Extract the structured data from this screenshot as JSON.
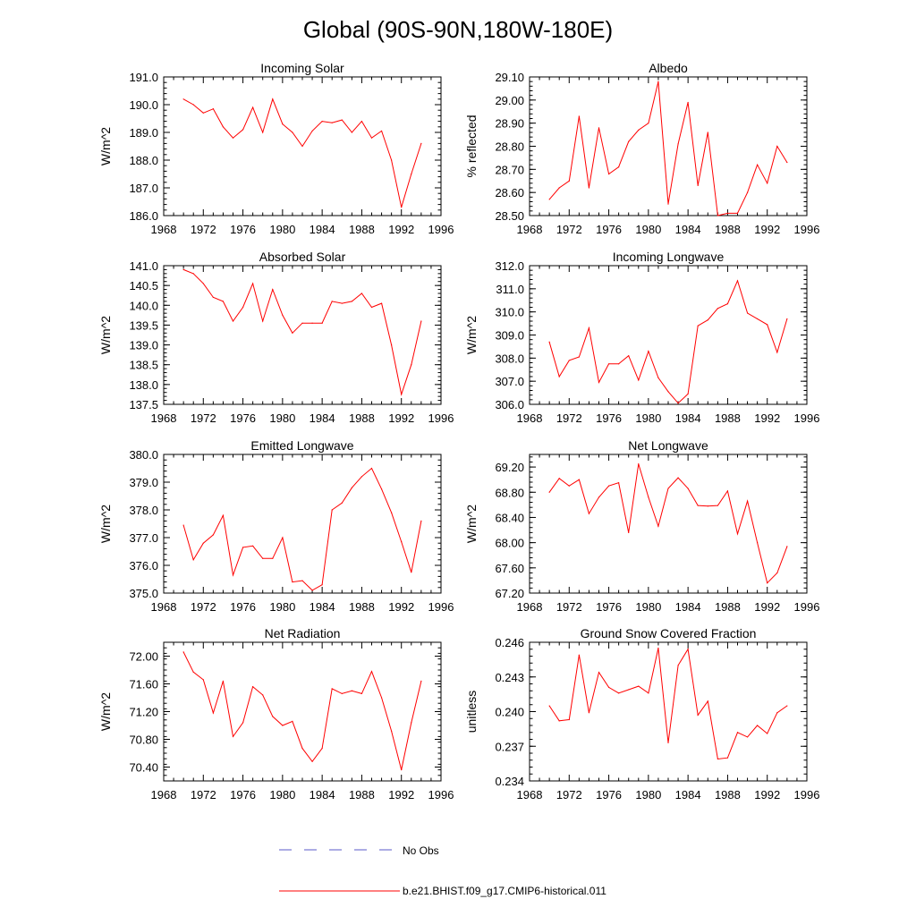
{
  "page_title": "Global (90S-90N,180W-180E)",
  "legend": [
    {
      "label": "No Obs",
      "color": "#5a5ac8",
      "dash": "dash"
    },
    {
      "label": "b.e21.BHIST.f09_g17.CMIP6-historical.011",
      "color": "#ff0000",
      "dash": "solid"
    }
  ],
  "colors": {
    "model_line": "#ff0000",
    "obs_line": "#5a5ac8",
    "axis": "#000000"
  },
  "chart_data": [
    {
      "type": "line",
      "title": "Incoming Solar",
      "ylabel": "W/m^2",
      "xlim": [
        1968,
        1996
      ],
      "xticks": [
        1968,
        1972,
        1976,
        1980,
        1984,
        1988,
        1992,
        1996
      ],
      "xtick_labels": [
        "1968",
        "1972",
        "1976",
        "1980",
        "1984",
        "1988",
        "1992",
        "1996"
      ],
      "ylim": [
        186.0,
        191.0
      ],
      "yticks": [
        186.0,
        187.0,
        188.0,
        189.0,
        190.0,
        191.0
      ],
      "ytick_labels": [
        "186.0",
        "187.0",
        "188.0",
        "189.0",
        "190.0",
        "191.0"
      ],
      "series": [
        {
          "name": "b.e21.BHIST.f09_g17.CMIP6-historical.011",
          "x": [
            1970,
            1971,
            1972,
            1973,
            1974,
            1975,
            1976,
            1977,
            1978,
            1979,
            1980,
            1981,
            1982,
            1983,
            1984,
            1985,
            1986,
            1987,
            1988,
            1989,
            1990,
            1991,
            1992,
            1993,
            1994
          ],
          "y": [
            190.2,
            190.0,
            189.7,
            189.85,
            189.2,
            188.8,
            189.1,
            189.9,
            189.0,
            190.2,
            189.3,
            189.0,
            188.5,
            189.05,
            189.4,
            189.35,
            189.45,
            189.0,
            189.4,
            188.8,
            189.05,
            188.0,
            186.3,
            187.5,
            188.6
          ]
        }
      ]
    },
    {
      "type": "line",
      "title": "Albedo",
      "ylabel": "% reflected",
      "xlim": [
        1968,
        1996
      ],
      "xticks": [
        1968,
        1972,
        1976,
        1980,
        1984,
        1988,
        1992,
        1996
      ],
      "xtick_labels": [
        "1968",
        "1972",
        "1976",
        "1980",
        "1984",
        "1988",
        "1992",
        "1996"
      ],
      "ylim": [
        28.5,
        29.1
      ],
      "yticks": [
        28.5,
        28.6,
        28.7,
        28.8,
        28.9,
        29.0,
        29.1
      ],
      "ytick_labels": [
        "28.50",
        "28.60",
        "28.70",
        "28.80",
        "28.90",
        "29.00",
        "29.10"
      ],
      "series": [
        {
          "name": "b.e21.BHIST.f09_g17.CMIP6-historical.011",
          "x": [
            1970,
            1971,
            1972,
            1973,
            1974,
            1975,
            1976,
            1977,
            1978,
            1979,
            1980,
            1981,
            1982,
            1983,
            1984,
            1985,
            1986,
            1987,
            1988,
            1989,
            1990,
            1991,
            1992,
            1993,
            1994
          ],
          "y": [
            28.57,
            28.62,
            28.65,
            28.93,
            28.62,
            28.88,
            28.68,
            28.71,
            28.82,
            28.87,
            28.9,
            29.08,
            28.55,
            28.81,
            28.99,
            28.63,
            28.86,
            28.5,
            28.51,
            28.51,
            28.6,
            28.72,
            28.64,
            28.8,
            28.73
          ]
        }
      ]
    },
    {
      "type": "line",
      "title": "Absorbed Solar",
      "ylabel": "W/m^2",
      "xlim": [
        1968,
        1996
      ],
      "xticks": [
        1968,
        1972,
        1976,
        1980,
        1984,
        1988,
        1992,
        1996
      ],
      "xtick_labels": [
        "1968",
        "1972",
        "1976",
        "1980",
        "1984",
        "1988",
        "1992",
        "1996"
      ],
      "ylim": [
        137.5,
        141.0
      ],
      "yticks": [
        137.5,
        138.0,
        138.5,
        139.0,
        139.5,
        140.0,
        140.5,
        141.0
      ],
      "ytick_labels": [
        "137.5",
        "138.0",
        "138.5",
        "139.0",
        "139.5",
        "140.0",
        "140.5",
        "141.0"
      ],
      "series": [
        {
          "name": "b.e21.BHIST.f09_g17.CMIP6-historical.011",
          "x": [
            1970,
            1971,
            1972,
            1973,
            1974,
            1975,
            1976,
            1977,
            1978,
            1979,
            1980,
            1981,
            1982,
            1983,
            1984,
            1985,
            1986,
            1987,
            1988,
            1989,
            1990,
            1991,
            1992,
            1993,
            1994
          ],
          "y": [
            140.9,
            140.8,
            140.55,
            140.2,
            140.1,
            139.6,
            139.95,
            140.55,
            139.6,
            140.4,
            139.75,
            139.3,
            139.55,
            139.55,
            139.55,
            140.1,
            140.05,
            140.1,
            140.3,
            139.95,
            140.05,
            139.0,
            137.75,
            138.5,
            139.6
          ]
        }
      ]
    },
    {
      "type": "line",
      "title": "Incoming Longwave",
      "ylabel": "W/m^2",
      "xlim": [
        1968,
        1996
      ],
      "xticks": [
        1968,
        1972,
        1976,
        1980,
        1984,
        1988,
        1992,
        1996
      ],
      "xtick_labels": [
        "1968",
        "1972",
        "1976",
        "1980",
        "1984",
        "1988",
        "1992",
        "1996"
      ],
      "ylim": [
        306.0,
        312.0
      ],
      "yticks": [
        306.0,
        307.0,
        308.0,
        309.0,
        310.0,
        311.0,
        312.0
      ],
      "ytick_labels": [
        "306.0",
        "307.0",
        "308.0",
        "309.0",
        "310.0",
        "311.0",
        "312.0"
      ],
      "series": [
        {
          "name": "b.e21.BHIST.f09_g17.CMIP6-historical.011",
          "x": [
            1970,
            1971,
            1972,
            1973,
            1974,
            1975,
            1976,
            1977,
            1978,
            1979,
            1980,
            1981,
            1982,
            1983,
            1984,
            1985,
            1986,
            1987,
            1988,
            1989,
            1990,
            1991,
            1992,
            1993,
            1994
          ],
          "y": [
            308.7,
            307.2,
            307.9,
            308.05,
            309.3,
            306.95,
            307.75,
            307.75,
            308.1,
            307.05,
            308.3,
            307.15,
            306.55,
            306.05,
            306.45,
            309.4,
            309.65,
            310.15,
            310.35,
            311.35,
            309.95,
            309.7,
            309.45,
            308.25,
            309.7
          ]
        }
      ]
    },
    {
      "type": "line",
      "title": "Emitted Longwave",
      "ylabel": "W/m^2",
      "xlim": [
        1968,
        1996
      ],
      "xticks": [
        1968,
        1972,
        1976,
        1980,
        1984,
        1988,
        1992,
        1996
      ],
      "xtick_labels": [
        "1968",
        "1972",
        "1976",
        "1980",
        "1984",
        "1988",
        "1992",
        "1996"
      ],
      "ylim": [
        375.0,
        380.0
      ],
      "yticks": [
        375.0,
        376.0,
        377.0,
        378.0,
        379.0,
        380.0
      ],
      "ytick_labels": [
        "375.0",
        "376.0",
        "377.0",
        "378.0",
        "379.0",
        "380.0"
      ],
      "series": [
        {
          "name": "b.e21.BHIST.f09_g17.CMIP6-historical.011",
          "x": [
            1970,
            1971,
            1972,
            1973,
            1974,
            1975,
            1976,
            1977,
            1978,
            1979,
            1980,
            1981,
            1982,
            1983,
            1984,
            1985,
            1986,
            1987,
            1988,
            1989,
            1990,
            1991,
            1992,
            1993,
            1994
          ],
          "y": [
            377.45,
            376.2,
            376.8,
            377.1,
            377.8,
            375.65,
            376.65,
            376.7,
            376.25,
            376.25,
            377.0,
            375.4,
            375.45,
            375.1,
            375.3,
            378.0,
            378.25,
            378.8,
            379.2,
            379.5,
            378.75,
            377.9,
            376.85,
            375.75,
            377.6
          ]
        }
      ]
    },
    {
      "type": "line",
      "title": "Net Longwave",
      "ylabel": "W/m^2",
      "xlim": [
        1968,
        1996
      ],
      "xticks": [
        1968,
        1972,
        1976,
        1980,
        1984,
        1988,
        1992,
        1996
      ],
      "xtick_labels": [
        "1968",
        "1972",
        "1976",
        "1980",
        "1984",
        "1988",
        "1992",
        "1996"
      ],
      "ylim": [
        67.2,
        69.4
      ],
      "yticks": [
        67.2,
        67.6,
        68.0,
        68.4,
        68.8,
        69.2
      ],
      "ytick_labels": [
        "67.20",
        "67.60",
        "68.00",
        "68.40",
        "68.80",
        "69.20"
      ],
      "series": [
        {
          "name": "b.e21.BHIST.f09_g17.CMIP6-historical.011",
          "x": [
            1970,
            1971,
            1972,
            1973,
            1974,
            1975,
            1976,
            1977,
            1978,
            1979,
            1980,
            1981,
            1982,
            1983,
            1984,
            1985,
            1986,
            1987,
            1988,
            1989,
            1990,
            1991,
            1992,
            1993,
            1994
          ],
          "y": [
            68.8,
            69.02,
            68.9,
            69.0,
            68.46,
            68.72,
            68.9,
            68.95,
            68.16,
            69.25,
            68.72,
            68.26,
            68.86,
            69.03,
            68.86,
            68.59,
            68.58,
            68.59,
            68.82,
            68.14,
            68.66,
            68.0,
            67.36,
            67.52,
            67.94
          ]
        }
      ]
    },
    {
      "type": "line",
      "title": "Net Radiation",
      "ylabel": "W/m^2",
      "xlim": [
        1968,
        1996
      ],
      "xticks": [
        1968,
        1972,
        1976,
        1980,
        1984,
        1988,
        1992,
        1996
      ],
      "xtick_labels": [
        "1968",
        "1972",
        "1976",
        "1980",
        "1984",
        "1988",
        "1992",
        "1996"
      ],
      "ylim": [
        70.2,
        72.2
      ],
      "yticks": [
        70.4,
        70.8,
        71.2,
        71.6,
        72.0
      ],
      "ytick_labels": [
        "70.40",
        "70.80",
        "71.20",
        "71.60",
        "72.00"
      ],
      "series": [
        {
          "name": "b.e21.BHIST.f09_g17.CMIP6-historical.011",
          "x": [
            1970,
            1971,
            1972,
            1973,
            1974,
            1975,
            1976,
            1977,
            1978,
            1979,
            1980,
            1981,
            1982,
            1983,
            1984,
            1985,
            1986,
            1987,
            1988,
            1989,
            1990,
            1991,
            1992,
            1993,
            1994
          ],
          "y": [
            72.06,
            71.77,
            71.66,
            71.18,
            71.64,
            70.84,
            71.04,
            71.56,
            71.44,
            71.13,
            71.0,
            71.06,
            70.67,
            70.48,
            70.67,
            71.53,
            71.46,
            71.5,
            71.46,
            71.78,
            71.4,
            70.92,
            70.36,
            71.04,
            71.64
          ]
        }
      ]
    },
    {
      "type": "line",
      "title": "Ground Snow Covered Fraction",
      "ylabel": "unitless",
      "xlim": [
        1968,
        1996
      ],
      "xticks": [
        1968,
        1972,
        1976,
        1980,
        1984,
        1988,
        1992,
        1996
      ],
      "xtick_labels": [
        "1968",
        "1972",
        "1976",
        "1980",
        "1984",
        "1988",
        "1992",
        "1996"
      ],
      "ylim": [
        0.234,
        0.246
      ],
      "yticks": [
        0.234,
        0.237,
        0.24,
        0.243,
        0.246
      ],
      "ytick_labels": [
        "0.234",
        "0.237",
        "0.240",
        "0.243",
        "0.246"
      ],
      "series": [
        {
          "name": "b.e21.BHIST.f09_g17.CMIP6-historical.011",
          "x": [
            1970,
            1971,
            1972,
            1973,
            1974,
            1975,
            1976,
            1977,
            1978,
            1979,
            1980,
            1981,
            1982,
            1983,
            1984,
            1985,
            1986,
            1987,
            1988,
            1989,
            1990,
            1991,
            1992,
            1993,
            1994
          ],
          "y": [
            0.2405,
            0.2392,
            0.2393,
            0.2449,
            0.2399,
            0.2434,
            0.2421,
            0.2416,
            0.2419,
            0.2422,
            0.2416,
            0.2455,
            0.2373,
            0.244,
            0.2454,
            0.2397,
            0.2409,
            0.2359,
            0.236,
            0.2382,
            0.2378,
            0.2388,
            0.2381,
            0.2399,
            0.2405
          ]
        }
      ]
    }
  ]
}
